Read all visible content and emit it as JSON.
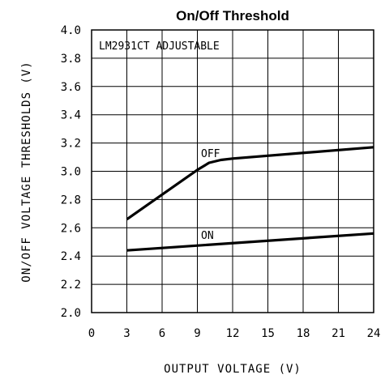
{
  "chart_data": {
    "type": "line",
    "title": "On/Off Threshold",
    "xlabel": "OUTPUT VOLTAGE (V)",
    "ylabel": "ON/OFF VOLTAGE THRESHOLDS (V)",
    "xlim": [
      0,
      24
    ],
    "ylim": [
      2.0,
      4.0
    ],
    "x_ticks": [
      "0",
      "3",
      "6",
      "9",
      "12",
      "15",
      "18",
      "21",
      "24"
    ],
    "y_ticks": [
      "2.0",
      "2.2",
      "2.4",
      "2.6",
      "2.8",
      "3.0",
      "3.2",
      "3.4",
      "3.6",
      "3.8",
      "4.0"
    ],
    "grid": true,
    "annotation": "LM2931CT ADJUSTABLE",
    "series": [
      {
        "name": "OFF",
        "x": [
          3,
          9,
          10,
          11,
          12,
          24
        ],
        "y": [
          2.66,
          3.01,
          3.06,
          3.08,
          3.09,
          3.17
        ]
      },
      {
        "name": "ON",
        "x": [
          3,
          24
        ],
        "y": [
          2.44,
          2.56
        ]
      }
    ]
  }
}
